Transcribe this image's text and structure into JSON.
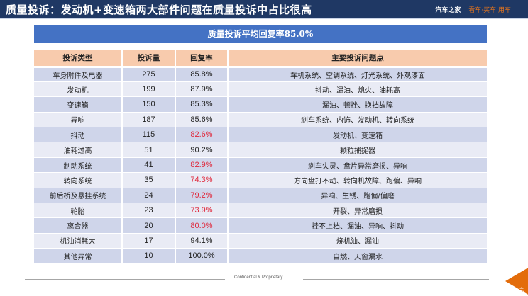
{
  "header": {
    "title": "质量投诉：发动机+变速箱两大部件问题在质量投诉中占比很高",
    "brand_name": "汽车之家",
    "brand_slogan": "看车·买车·用车"
  },
  "banner": {
    "text": "质量投诉平均回复率85.0%"
  },
  "colors": {
    "title_bar": "#1f3864",
    "banner": "#4472c4",
    "table_header": "#f8cbad",
    "row_odd": "#cfd5ea",
    "row_even": "#e9ebf5",
    "low_rate": "#e0283b",
    "accent_orange": "#e36c0a"
  },
  "table": {
    "columns": [
      "投诉类型",
      "投诉量",
      "回复率",
      "主要投诉问题点"
    ],
    "rows": [
      {
        "type": "车身附件及电器",
        "count": "275",
        "rate": "85.8%",
        "below_avg": false,
        "issues": "车机系统、空调系统、灯光系统、外观漆面"
      },
      {
        "type": "发动机",
        "count": "199",
        "rate": "87.9%",
        "below_avg": false,
        "issues": "抖动、漏油、熄火、油耗高"
      },
      {
        "type": "变速箱",
        "count": "150",
        "rate": "85.3%",
        "below_avg": false,
        "issues": "漏油、顿挫、换挡故障"
      },
      {
        "type": "异响",
        "count": "187",
        "rate": "85.6%",
        "below_avg": false,
        "issues": "刹车系统、内饰、发动机、转向系统"
      },
      {
        "type": "抖动",
        "count": "115",
        "rate": "82.6%",
        "below_avg": true,
        "issues": "发动机、变速箱"
      },
      {
        "type": "油耗过高",
        "count": "51",
        "rate": "90.2%",
        "below_avg": false,
        "issues": "颗粒捕捉器"
      },
      {
        "type": "制动系统",
        "count": "41",
        "rate": "82.9%",
        "below_avg": true,
        "issues": "刹车失灵、盘片异常磨损、异响"
      },
      {
        "type": "转向系统",
        "count": "35",
        "rate": "74.3%",
        "below_avg": true,
        "issues": "方向盘打不动、转向机故障、跑偏、异响"
      },
      {
        "type": "前后桥及悬挂系统",
        "count": "24",
        "rate": "79.2%",
        "below_avg": true,
        "issues": "异响、生锈、跑偏/偏磨"
      },
      {
        "type": "轮胎",
        "count": "23",
        "rate": "73.9%",
        "below_avg": true,
        "issues": "开裂、异常磨损"
      },
      {
        "type": "离合器",
        "count": "20",
        "rate": "80.0%",
        "below_avg": true,
        "issues": "挂不上档、漏油、异响、抖动"
      },
      {
        "type": "机油消耗大",
        "count": "17",
        "rate": "94.1%",
        "below_avg": false,
        "issues": "烧机油、漏油"
      },
      {
        "type": "其他异常",
        "count": "10",
        "rate": "100.0%",
        "below_avg": false,
        "issues": "自燃、天窗漏水"
      }
    ]
  },
  "footer": {
    "text": "Confidential & Proprietary",
    "corner_glyph": "宗"
  }
}
